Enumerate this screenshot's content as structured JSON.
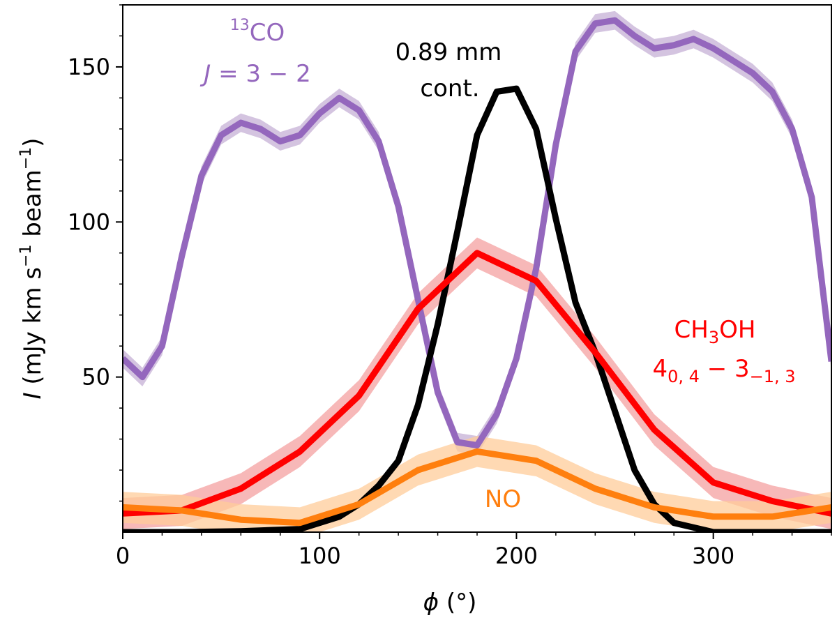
{
  "chart_data": {
    "type": "line",
    "xlabel": "ϕ (°)",
    "ylabel": "I (mJy km s⁻¹ beam⁻¹)",
    "xlim": [
      0,
      360
    ],
    "ylim": [
      0,
      170
    ],
    "xticks": [
      0,
      100,
      200,
      300
    ],
    "yticks": [
      50,
      100,
      150
    ],
    "xtick_labels": [
      "0",
      "100",
      "200",
      "300"
    ],
    "ytick_labels": [
      "50",
      "100",
      "150"
    ],
    "grid": false,
    "series": [
      {
        "name": "13CO J=3-2",
        "color": "#9467bd",
        "band_color": "#c5b0d5",
        "label_lines": [
          "13CO",
          "J = 3 − 2"
        ],
        "x": [
          0,
          10,
          20,
          30,
          40,
          50,
          60,
          70,
          80,
          90,
          100,
          110,
          120,
          130,
          140,
          150,
          160,
          170,
          180,
          190,
          200,
          210,
          220,
          230,
          240,
          250,
          260,
          270,
          280,
          290,
          300,
          310,
          320,
          330,
          340,
          350,
          360
        ],
        "y": [
          56,
          50,
          60,
          89,
          115,
          128,
          132,
          130,
          126,
          128,
          135,
          140,
          136,
          126,
          105,
          75,
          45,
          29,
          28,
          38,
          56,
          85,
          125,
          155,
          164,
          165,
          160,
          156,
          157,
          159,
          156,
          152,
          148,
          142,
          130,
          108,
          55
        ],
        "err": [
          3,
          3,
          3,
          3,
          3,
          3,
          3,
          3,
          3,
          3,
          3,
          3,
          3,
          3,
          3,
          3,
          3,
          3,
          3,
          3,
          3,
          3,
          3,
          3,
          3,
          3,
          3,
          3,
          3,
          3,
          3,
          3,
          3,
          3,
          3,
          3,
          3
        ]
      },
      {
        "name": "0.89 mm cont.",
        "color": "#000000",
        "label_lines": [
          "0.89 mm",
          "cont."
        ],
        "x": [
          0,
          30,
          60,
          90,
          110,
          120,
          130,
          140,
          150,
          160,
          170,
          180,
          190,
          200,
          210,
          220,
          230,
          240,
          250,
          260,
          270,
          280,
          300,
          330,
          360
        ],
        "y": [
          0,
          0,
          0.3,
          1,
          5,
          9,
          15,
          23,
          41,
          67,
          97,
          128,
          142,
          143,
          130,
          101,
          74,
          58,
          39,
          20,
          9,
          3,
          0,
          0,
          0
        ],
        "err": []
      },
      {
        "name": "CH3OH 4(0,4)-3(-1,3)",
        "color": "#ff0000",
        "band_color": "#f4a0a0",
        "label_lines": [
          "CH3OH",
          "4 0,4 − 3 −1,3"
        ],
        "x": [
          0,
          30,
          60,
          90,
          120,
          150,
          180,
          210,
          240,
          270,
          300,
          330,
          360
        ],
        "y": [
          6,
          7,
          14,
          26,
          44,
          72,
          90,
          81,
          58,
          33,
          16,
          10,
          6
        ],
        "err": [
          5,
          5,
          5,
          5,
          5,
          5,
          5,
          5,
          5,
          5,
          5,
          5,
          5
        ]
      },
      {
        "name": "NO",
        "color": "#ff7f0e",
        "band_color": "#ffcc99",
        "label_lines": [
          "NO"
        ],
        "x": [
          0,
          30,
          60,
          90,
          120,
          150,
          180,
          210,
          240,
          270,
          300,
          330,
          360
        ],
        "y": [
          8,
          7,
          4,
          3,
          9,
          20,
          26,
          23,
          14,
          8,
          5,
          5,
          8
        ],
        "err": [
          5,
          5,
          5,
          5,
          5,
          5,
          5,
          5,
          5,
          5,
          5,
          5,
          5
        ]
      }
    ],
    "annotations": {
      "co_sup": "13",
      "co_main": "CO",
      "co_j": "J",
      "co_trans": " = 3 − 2",
      "cont_line1": "0.89 mm",
      "cont_line2": "cont.",
      "ch3_ch": "CH",
      "ch3_sub": "3",
      "ch3_oh": "OH",
      "q_a": "4",
      "q_a_sub": "0, 4",
      "q_b": " − 3",
      "q_b_sub": "−1, 3",
      "no": "NO"
    },
    "axis_text": {
      "x_phi": "ϕ",
      "x_unit": " (°)",
      "y_i": "I",
      "y_a": " (mJy km s",
      "y_sup1": "−1",
      "y_b": " beam",
      "y_sup2": "−1",
      "y_c": ")"
    }
  }
}
